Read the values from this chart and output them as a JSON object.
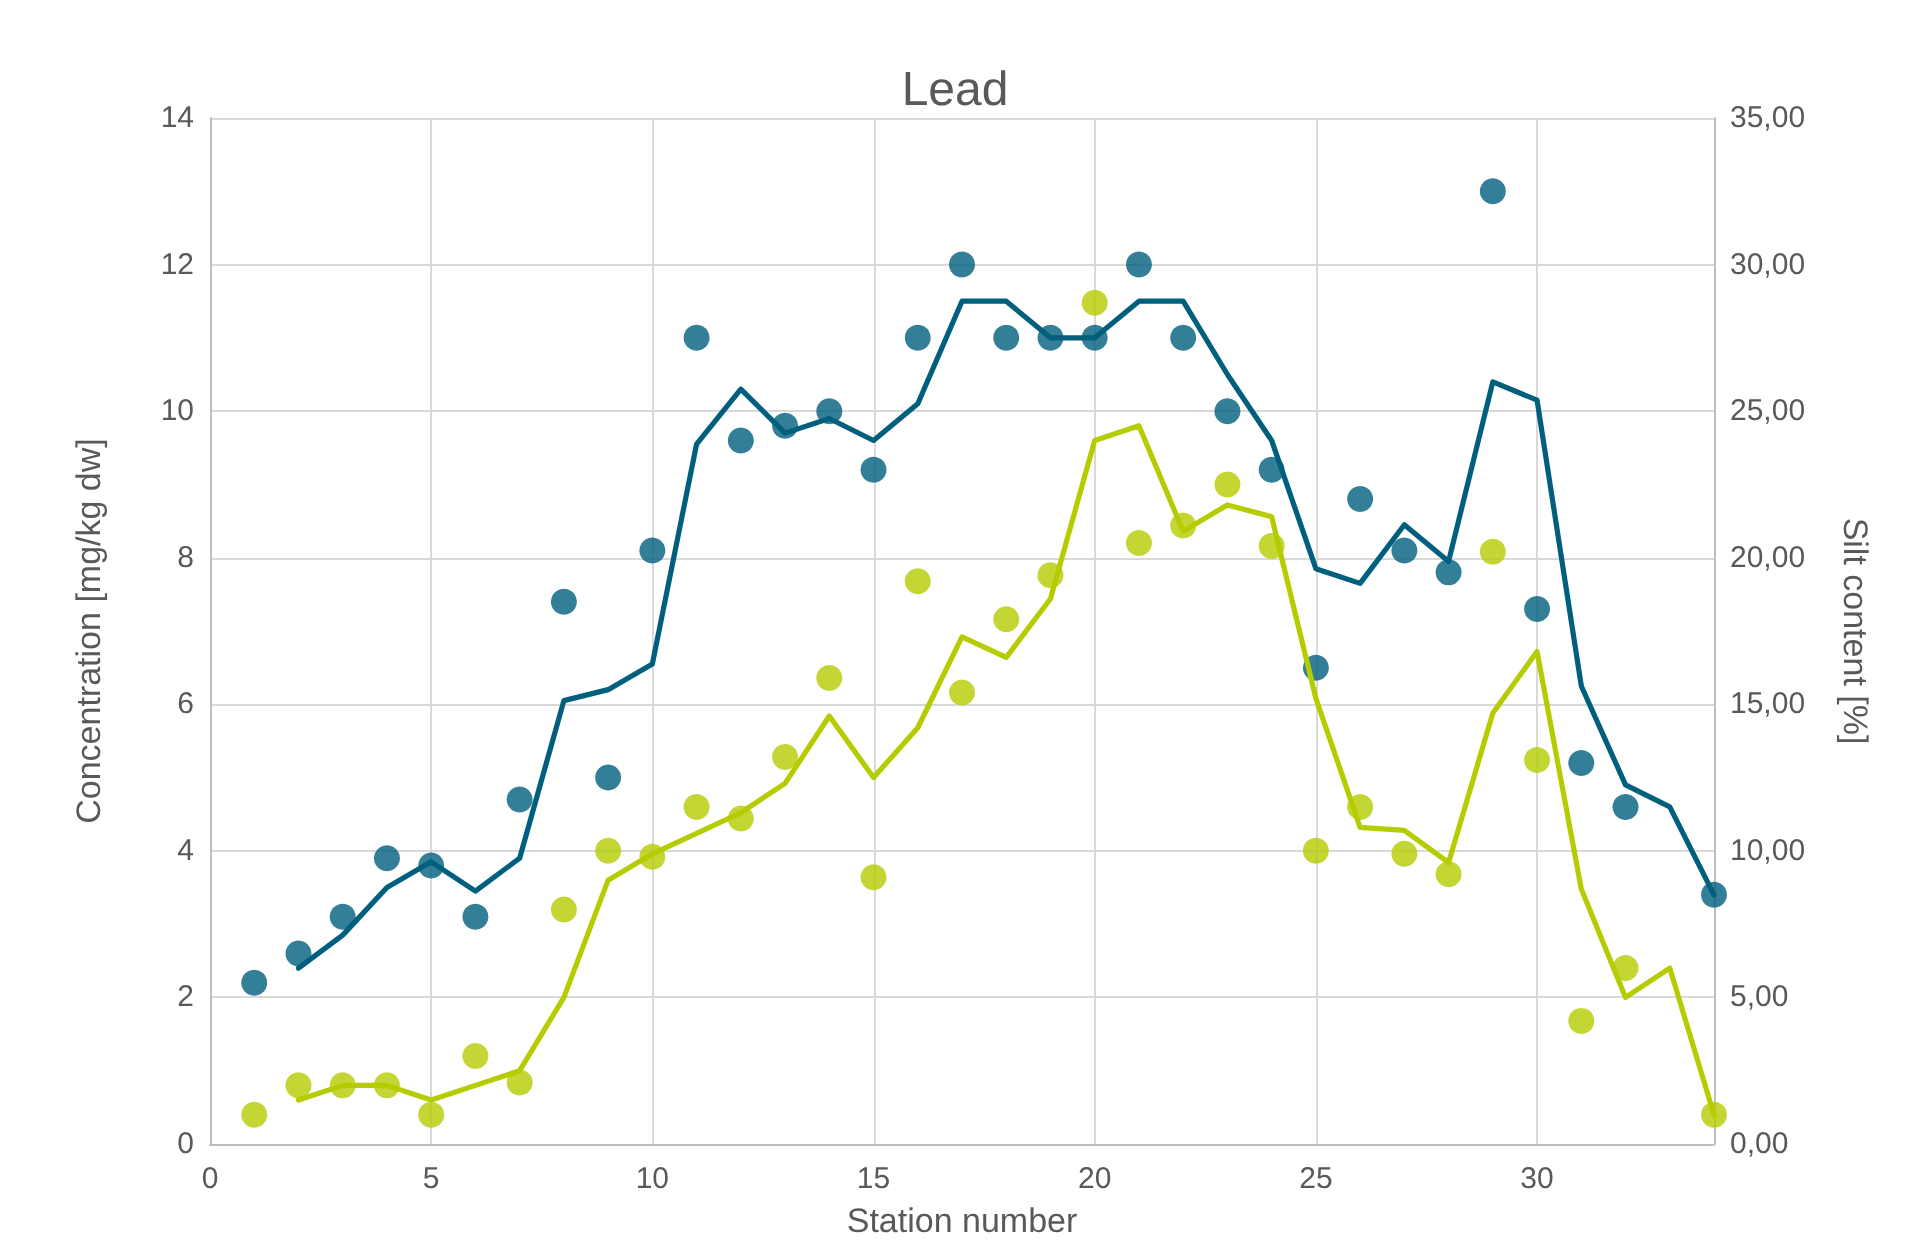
{
  "chart_data": {
    "type": "scatter",
    "title": "Lead",
    "xlabel": "Station number",
    "ylabel": "Concentration [mg/kg dw]",
    "y2label": "Silt content [%]",
    "xlim": [
      0,
      34
    ],
    "xticks": [
      0,
      5,
      10,
      15,
      20,
      25,
      30
    ],
    "ylim": [
      0,
      14
    ],
    "yticks": [
      0,
      2,
      4,
      6,
      8,
      10,
      12,
      14
    ],
    "y2lim": [
      0,
      35
    ],
    "y2ticks": [
      {
        "value": 0,
        "label": "0,00"
      },
      {
        "value": 5,
        "label": "5,00"
      },
      {
        "value": 10,
        "label": "10,00"
      },
      {
        "value": 15,
        "label": "15,00"
      },
      {
        "value": 20,
        "label": "20,00"
      },
      {
        "value": 25,
        "label": "25,00"
      },
      {
        "value": 30,
        "label": "30,00"
      },
      {
        "value": 35,
        "label": "35,00"
      }
    ],
    "grid": true,
    "series": [
      {
        "marker": "circle",
        "color": "#005f7d",
        "x": [
          1,
          2,
          3,
          4,
          5,
          6,
          7,
          8,
          9,
          10,
          11,
          12,
          13,
          14,
          15,
          16,
          17,
          18,
          19,
          20,
          21,
          22,
          23,
          24,
          25,
          26,
          27,
          28,
          29,
          30,
          31,
          32,
          33,
          34
        ],
        "values": [
          2.2,
          2.6,
          3.1,
          3.9,
          3.8,
          3.1,
          4.7,
          7.4,
          5.0,
          8.1,
          11.0,
          9.6,
          9.8,
          10.0,
          9.2,
          11.0,
          12.0,
          11.0,
          11.0,
          11.0,
          12.0,
          11.0,
          10.0,
          9.2,
          6.5,
          8.8,
          8.1,
          7.8,
          13.0,
          7.3,
          5.2,
          4.6,
          null,
          3.4
        ]
      },
      {
        "marker": "circle",
        "axis": "y2",
        "color": "#b5cc00",
        "x": [
          1,
          2,
          3,
          4,
          5,
          6,
          7,
          8,
          9,
          10,
          11,
          12,
          13,
          14,
          15,
          16,
          17,
          18,
          19,
          20,
          21,
          22,
          23,
          24,
          25,
          26,
          27,
          28,
          29,
          30,
          31,
          32,
          33,
          34
        ],
        "values": [
          1.0,
          2.0,
          2.0,
          2.0,
          1.0,
          3.0,
          2.1,
          8.0,
          10.0,
          9.8,
          11.5,
          11.1,
          13.2,
          15.9,
          9.1,
          19.2,
          15.4,
          17.9,
          19.4,
          28.7,
          20.5,
          21.1,
          22.5,
          20.4,
          10.0,
          11.5,
          9.9,
          9.2,
          20.2,
          13.1,
          4.2,
          6.0,
          null,
          1.0
        ]
      },
      {
        "type": "line",
        "line_style": "solid",
        "color": "#005f7d",
        "x": [
          2,
          3,
          4,
          5,
          6,
          7,
          8,
          9,
          10,
          11,
          12,
          13,
          14,
          15,
          16,
          17,
          18,
          19,
          20,
          21,
          22,
          23,
          24,
          25,
          26,
          27,
          28,
          29,
          30,
          31,
          32,
          33,
          34
        ],
        "values": [
          2.4,
          2.85,
          3.5,
          3.85,
          3.45,
          3.9,
          6.05,
          6.2,
          6.55,
          9.55,
          10.3,
          9.7,
          9.9,
          9.6,
          10.1,
          11.5,
          11.5,
          11.0,
          11.0,
          11.5,
          11.5,
          10.5,
          9.6,
          7.85,
          7.65,
          8.45,
          7.95,
          10.4,
          10.15,
          6.25,
          4.9,
          4.6,
          3.4
        ]
      },
      {
        "type": "line",
        "line_style": "solid",
        "axis": "y2",
        "color": "#b5cc00",
        "x": [
          2,
          3,
          4,
          5,
          6,
          7,
          8,
          9,
          10,
          11,
          12,
          13,
          14,
          15,
          16,
          17,
          18,
          19,
          20,
          21,
          22,
          23,
          24,
          25,
          26,
          27,
          28,
          29,
          30,
          31,
          32,
          33,
          34
        ],
        "values": [
          1.5,
          2.0,
          2.0,
          1.5,
          2.0,
          2.5,
          5.0,
          9.0,
          9.9,
          10.6,
          11.3,
          12.3,
          14.6,
          12.5,
          14.2,
          17.3,
          16.6,
          18.6,
          24.0,
          24.5,
          20.9,
          21.8,
          21.4,
          15.2,
          10.8,
          10.7,
          9.6,
          14.7,
          16.8,
          8.7,
          5.0,
          6.0,
          1.0
        ]
      }
    ]
  }
}
